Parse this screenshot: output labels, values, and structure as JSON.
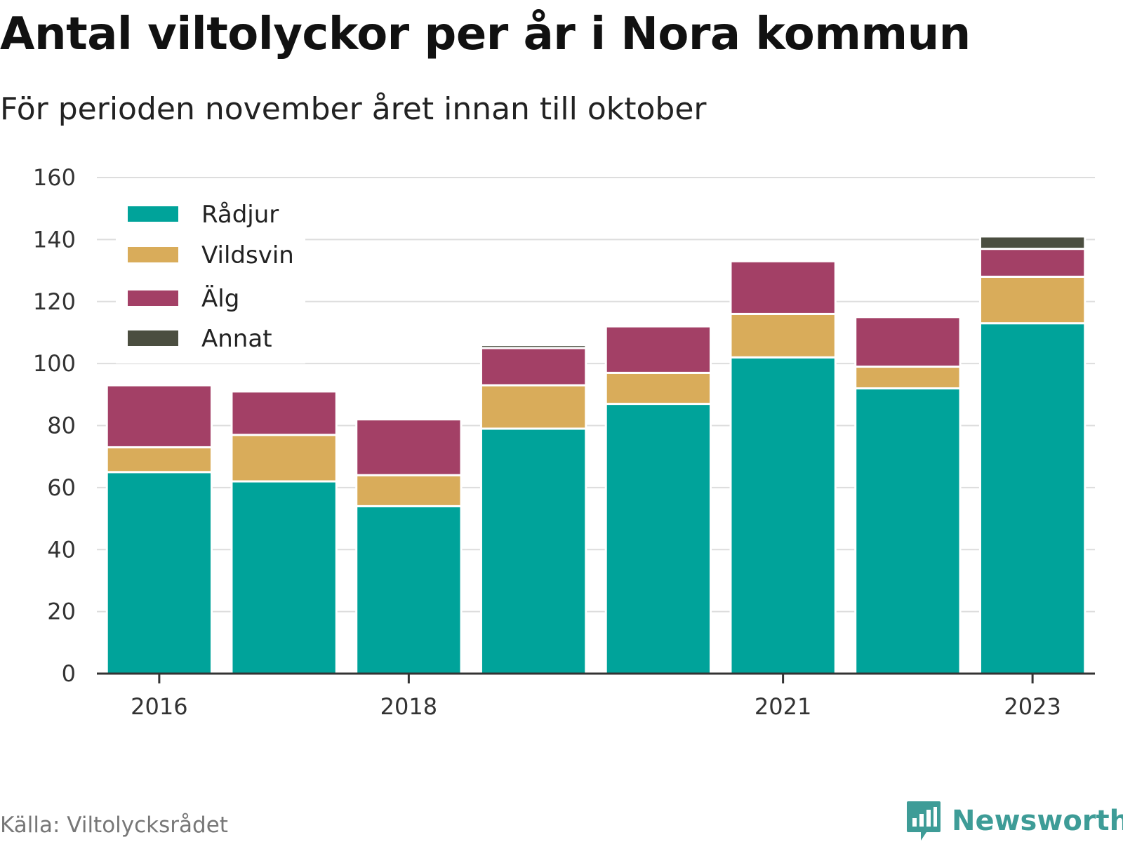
{
  "header": {
    "title": "Antal viltolyckor per år i Nora kommun",
    "subtitle": "För perioden november året innan till oktober"
  },
  "footer": {
    "source": "Källa: Viltolycksrådet",
    "brand": "Newsworthy"
  },
  "colors": {
    "radjur": "#00a39a",
    "vildsvin": "#d9ac5a",
    "alg": "#a34066",
    "annat": "#4b4e40",
    "grid": "#dddddd",
    "brand": "#3e9c97"
  },
  "icons": {
    "brand_logo": "bar-chart-speech-bubble-icon"
  },
  "chart_data": {
    "type": "bar",
    "stacked": true,
    "categories": [
      "2016",
      "2017",
      "2018",
      "2019",
      "2020",
      "2021",
      "2022",
      "2023"
    ],
    "x_tick_labels": [
      "2016",
      "2018",
      "2021",
      "2023"
    ],
    "series": [
      {
        "name": "Rådjur",
        "values": [
          65,
          62,
          54,
          79,
          87,
          102,
          92,
          113
        ]
      },
      {
        "name": "Vildsvin",
        "values": [
          8,
          15,
          10,
          14,
          10,
          14,
          7,
          15
        ]
      },
      {
        "name": "Älg",
        "values": [
          20,
          14,
          18,
          12,
          15,
          17,
          16,
          9
        ]
      },
      {
        "name": "Annat",
        "values": [
          0,
          0,
          0,
          1,
          0,
          0,
          0,
          4
        ]
      }
    ],
    "y_ticks": [
      "0",
      "20",
      "40",
      "60",
      "80",
      "100",
      "120",
      "140",
      "160"
    ],
    "ylim": [
      0,
      160
    ],
    "grid": true,
    "legend_position": "top-left"
  }
}
